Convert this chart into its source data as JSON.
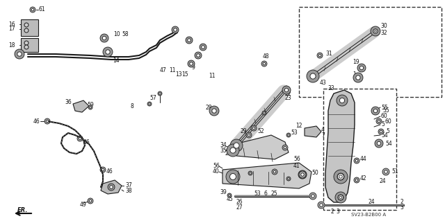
{
  "bg_color": "#ffffff",
  "fig_width": 6.4,
  "fig_height": 3.19,
  "dpi": 100,
  "line_color": "#1a1a1a",
  "part_color": "#888888",
  "fill_color": "#d8d8d8",
  "diagram_code": "SV23-B2B00 A"
}
